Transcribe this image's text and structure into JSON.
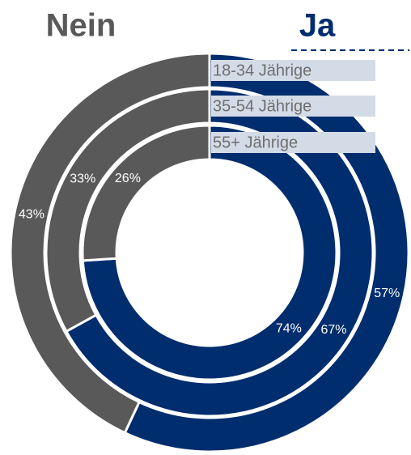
{
  "chart_data": {
    "type": "donut",
    "categories": [
      "18-34 Jährige",
      "35-54 Jährige",
      "55+ Jährige"
    ],
    "series": [
      {
        "name": "Ja",
        "color": "#002d6e",
        "values": [
          57,
          67,
          74
        ],
        "value_labels": [
          "57%",
          "67%",
          "74%"
        ]
      },
      {
        "name": "Nein",
        "color": "#595959",
        "values": [
          43,
          33,
          26
        ],
        "value_labels": [
          "43%",
          "33%",
          "26%"
        ]
      }
    ]
  }
}
